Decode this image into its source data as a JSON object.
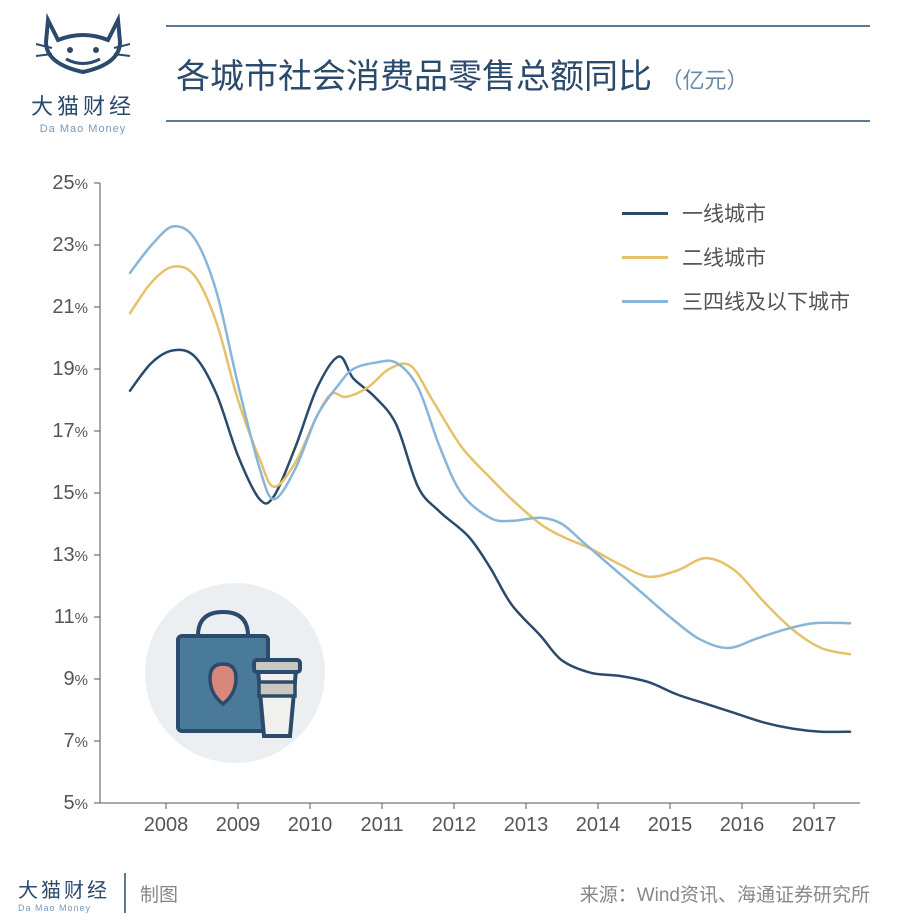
{
  "logo": {
    "cn": "大猫财经",
    "en": "Da Mao Money"
  },
  "title": {
    "main": "各城市社会消费品零售总额同比",
    "unit": "（亿元）"
  },
  "chart": {
    "type": "line",
    "background_color": "#ffffff",
    "axis_color": "#555555",
    "ylim": [
      5,
      25
    ],
    "yticks": [
      5,
      7,
      9,
      11,
      13,
      15,
      17,
      19,
      21,
      23,
      25
    ],
    "ytick_suffix": "%",
    "xlabels": [
      "2008",
      "2009",
      "2010",
      "2011",
      "2012",
      "2013",
      "2014",
      "2015",
      "2016",
      "2017"
    ],
    "line_width": 2.5,
    "series": [
      {
        "name": "一线城市",
        "color": "#2c4a6b",
        "points": [
          [
            0.0,
            18.3
          ],
          [
            0.3,
            19.2
          ],
          [
            0.6,
            19.6
          ],
          [
            0.9,
            19.4
          ],
          [
            1.2,
            18.2
          ],
          [
            1.5,
            16.2
          ],
          [
            1.8,
            14.8
          ],
          [
            2.0,
            14.9
          ],
          [
            2.3,
            16.5
          ],
          [
            2.6,
            18.4
          ],
          [
            2.9,
            19.4
          ],
          [
            3.1,
            18.7
          ],
          [
            3.4,
            18.1
          ],
          [
            3.7,
            17.2
          ],
          [
            4.0,
            15.2
          ],
          [
            4.3,
            14.4
          ],
          [
            4.7,
            13.6
          ],
          [
            5.0,
            12.6
          ],
          [
            5.3,
            11.4
          ],
          [
            5.7,
            10.4
          ],
          [
            6.0,
            9.6
          ],
          [
            6.4,
            9.2
          ],
          [
            6.8,
            9.1
          ],
          [
            7.2,
            8.9
          ],
          [
            7.6,
            8.5
          ],
          [
            8.0,
            8.2
          ],
          [
            8.4,
            7.9
          ],
          [
            8.8,
            7.6
          ],
          [
            9.2,
            7.4
          ],
          [
            9.6,
            7.3
          ],
          [
            10.0,
            7.3
          ]
        ]
      },
      {
        "name": "二线城市",
        "color": "#e5c16a",
        "points": [
          [
            0.0,
            20.8
          ],
          [
            0.3,
            21.8
          ],
          [
            0.6,
            22.3
          ],
          [
            0.9,
            22.0
          ],
          [
            1.2,
            20.5
          ],
          [
            1.5,
            18.0
          ],
          [
            1.8,
            16.1
          ],
          [
            2.0,
            15.2
          ],
          [
            2.3,
            16.0
          ],
          [
            2.6,
            17.5
          ],
          [
            2.8,
            18.2
          ],
          [
            3.0,
            18.1
          ],
          [
            3.3,
            18.4
          ],
          [
            3.6,
            19.0
          ],
          [
            3.9,
            19.1
          ],
          [
            4.2,
            18.0
          ],
          [
            4.6,
            16.5
          ],
          [
            5.0,
            15.5
          ],
          [
            5.3,
            14.8
          ],
          [
            5.7,
            14.0
          ],
          [
            6.0,
            13.6
          ],
          [
            6.4,
            13.2
          ],
          [
            6.8,
            12.7
          ],
          [
            7.2,
            12.3
          ],
          [
            7.6,
            12.5
          ],
          [
            8.0,
            12.9
          ],
          [
            8.4,
            12.5
          ],
          [
            8.8,
            11.5
          ],
          [
            9.2,
            10.6
          ],
          [
            9.6,
            10.0
          ],
          [
            10.0,
            9.8
          ]
        ]
      },
      {
        "name": "三四线及以下城市",
        "color": "#88b5d8",
        "points": [
          [
            0.0,
            22.1
          ],
          [
            0.3,
            23.0
          ],
          [
            0.6,
            23.6
          ],
          [
            0.9,
            23.2
          ],
          [
            1.2,
            21.5
          ],
          [
            1.5,
            18.5
          ],
          [
            1.8,
            15.8
          ],
          [
            2.0,
            14.8
          ],
          [
            2.3,
            15.8
          ],
          [
            2.6,
            17.5
          ],
          [
            2.9,
            18.5
          ],
          [
            3.1,
            19.0
          ],
          [
            3.4,
            19.2
          ],
          [
            3.7,
            19.2
          ],
          [
            4.0,
            18.4
          ],
          [
            4.3,
            16.5
          ],
          [
            4.6,
            15.0
          ],
          [
            5.0,
            14.2
          ],
          [
            5.3,
            14.1
          ],
          [
            5.7,
            14.2
          ],
          [
            6.0,
            14.0
          ],
          [
            6.3,
            13.4
          ],
          [
            6.7,
            12.6
          ],
          [
            7.1,
            11.8
          ],
          [
            7.5,
            11.0
          ],
          [
            7.9,
            10.3
          ],
          [
            8.3,
            10.0
          ],
          [
            8.7,
            10.3
          ],
          [
            9.1,
            10.6
          ],
          [
            9.5,
            10.8
          ],
          [
            10.0,
            10.8
          ]
        ]
      }
    ]
  },
  "footer": {
    "label": "制图",
    "source_prefix": "来源：",
    "source": "Wind资讯、海通证券研究所"
  },
  "icon": {
    "circle_bg": "#eceff1",
    "bag_color": "#4a7a9a",
    "bag_accent": "#2c4a6b",
    "heart_color": "#d8887a",
    "cup_color": "#f0f0ec",
    "cup_lid": "#c8c8c0"
  }
}
